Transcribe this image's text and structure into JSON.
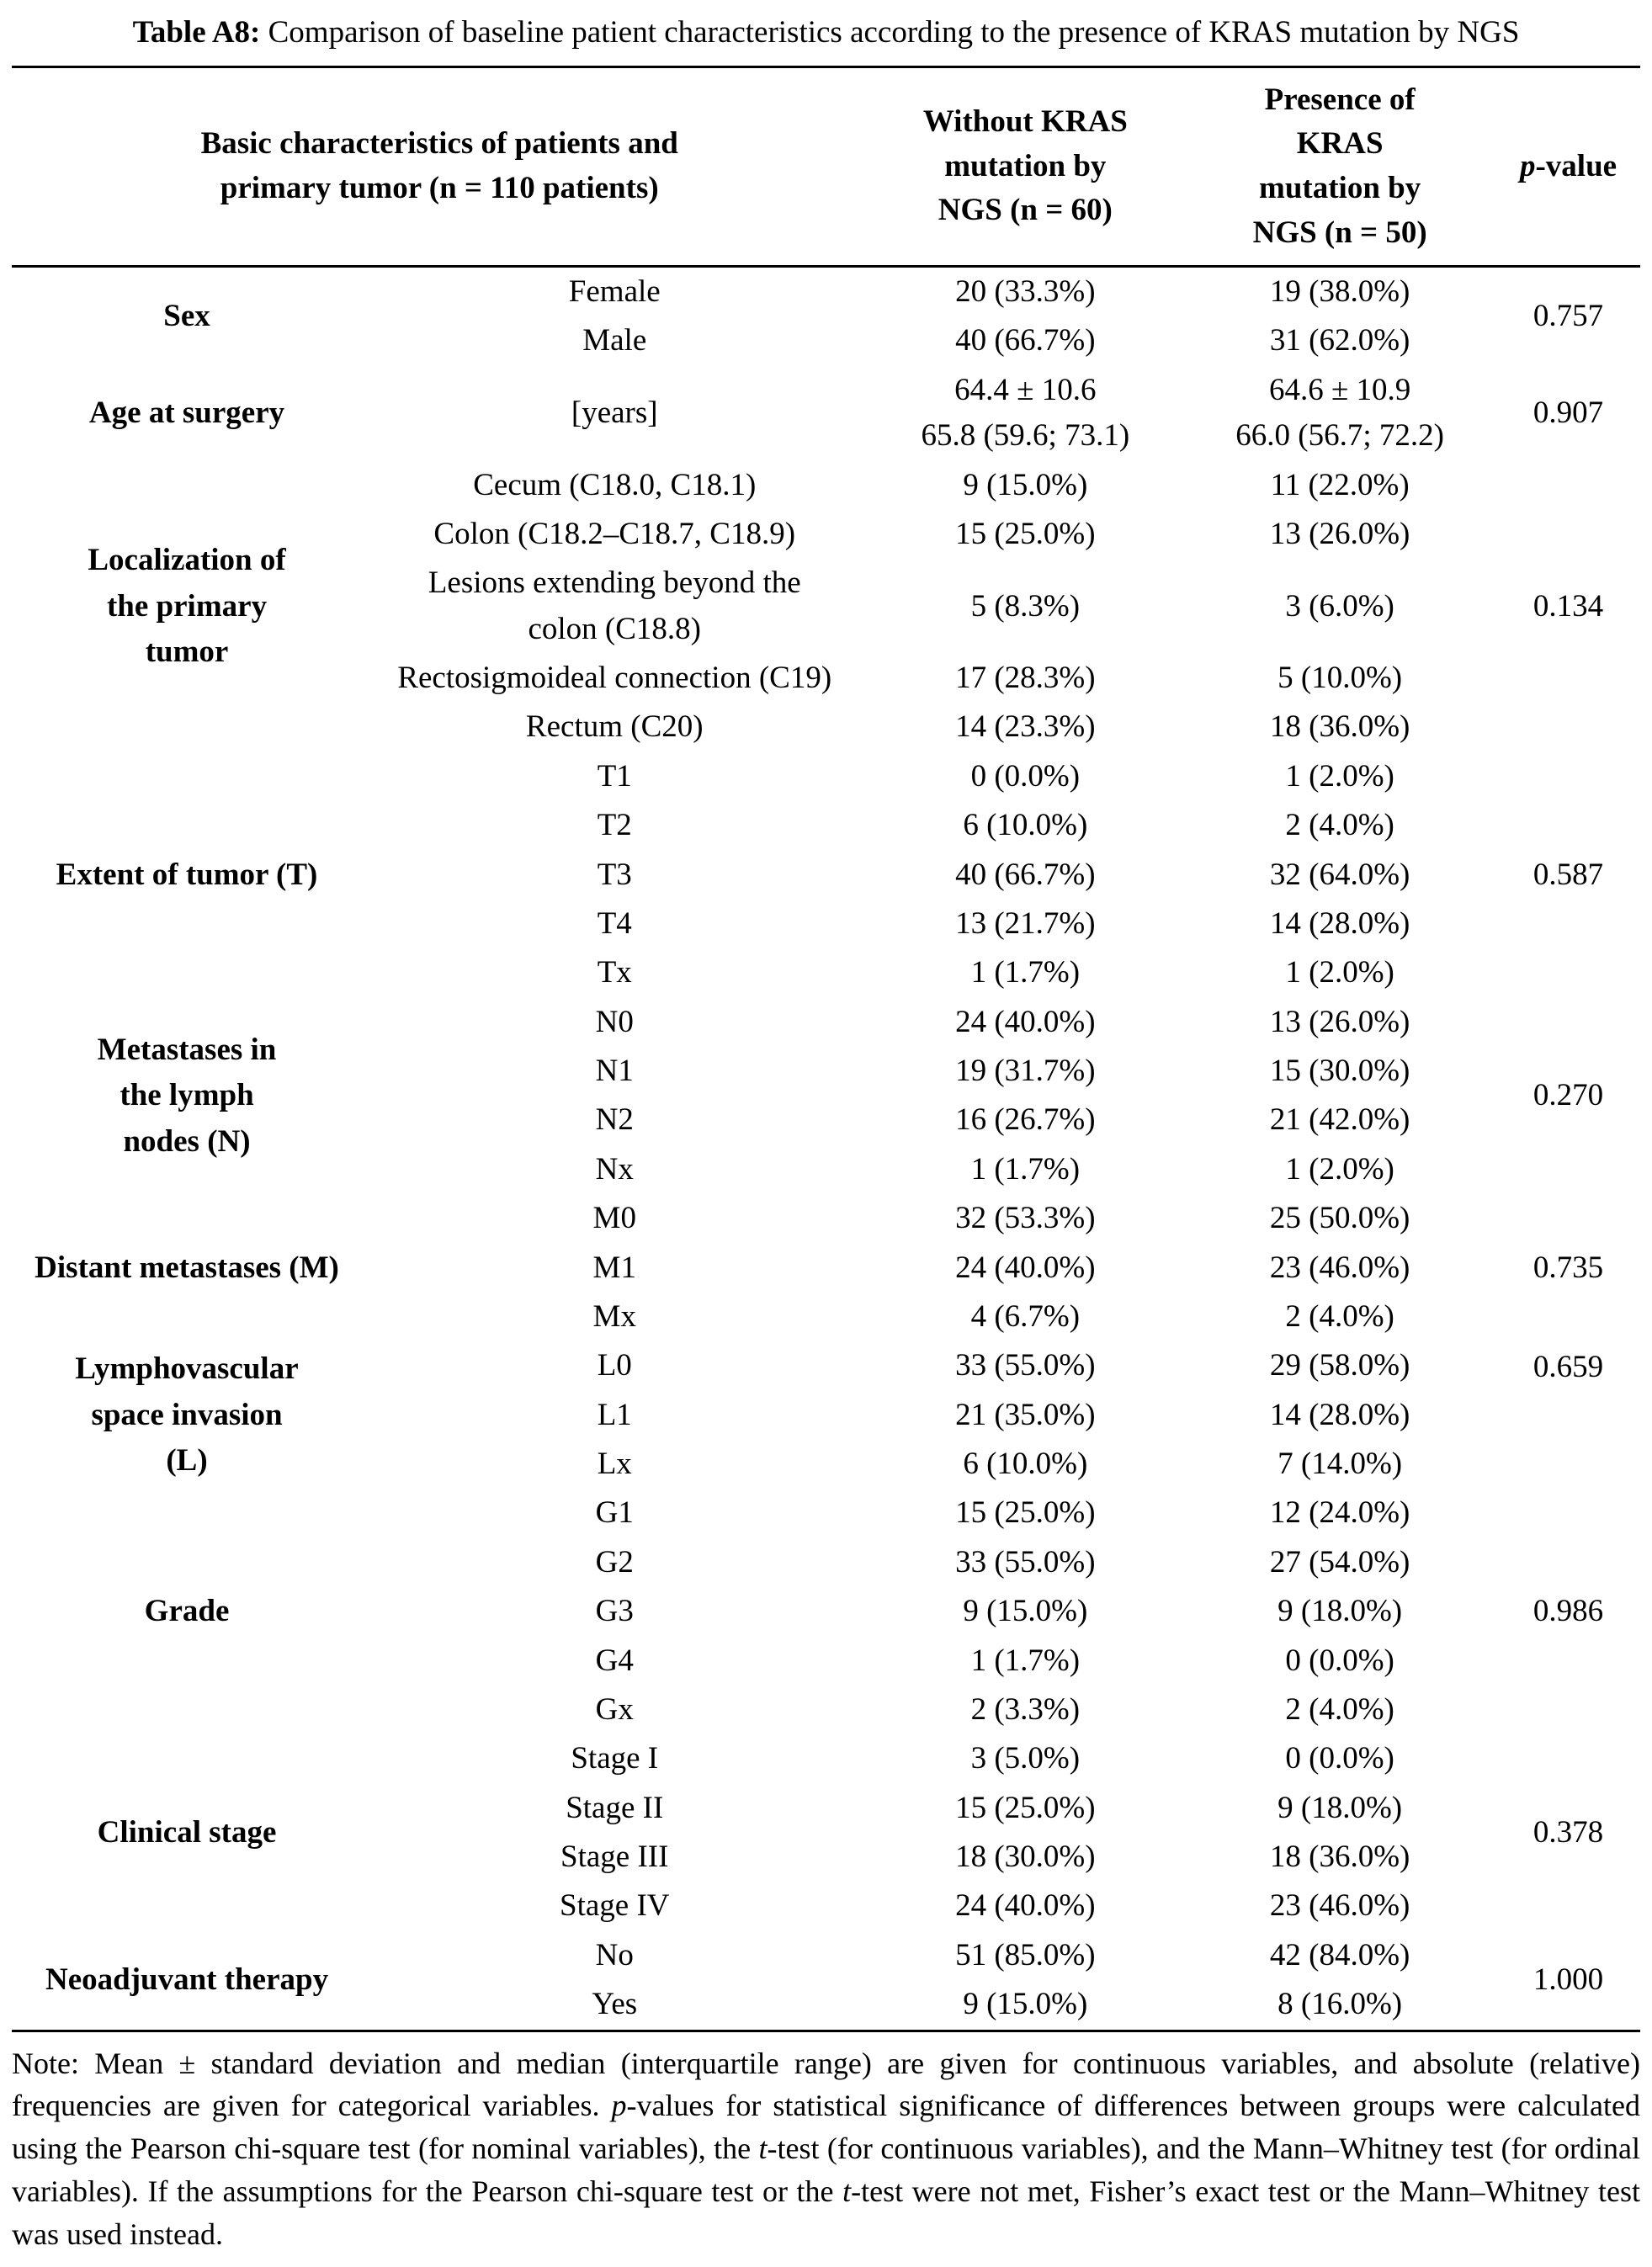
{
  "caption": {
    "segments": [
      {
        "text": "Table A8:",
        "bold": true
      },
      {
        "text": " Comparison of baseline patient characteristics according to the presence of KRAS mutation by NGS"
      }
    ]
  },
  "table": {
    "header": {
      "col1": "Basic characteristics of patients and\nprimary tumor (n = 110 patients)",
      "col2": "Without KRAS\nmutation by\nNGS (n = 60)",
      "col3": "Presence of\nKRAS\nmutation by\nNGS (n = 50)",
      "p_segments": [
        {
          "text": "p",
          "italic": true
        },
        {
          "text": "-value"
        }
      ]
    },
    "groups": [
      {
        "label": "Sex",
        "p": "0.757",
        "rows": [
          {
            "sub": "Female",
            "v1": "20 (33.3%)",
            "v2": "19 (38.0%)"
          },
          {
            "sub": "Male",
            "v1": "40 (66.7%)",
            "v2": "31 (62.0%)"
          }
        ]
      },
      {
        "label": "Age at surgery",
        "p": "0.907",
        "rows": [
          {
            "sub": "[years]",
            "v1": "64.4 ± 10.6\n65.8 (59.6; 73.1)",
            "v2": "64.6 ± 10.9\n66.0 (56.7; 72.2)"
          }
        ]
      },
      {
        "label": "Localization of\nthe primary\ntumor",
        "p": "0.134",
        "rows": [
          {
            "sub": "Cecum (C18.0, C18.1)",
            "v1": "9 (15.0%)",
            "v2": "11 (22.0%)"
          },
          {
            "sub": "Colon (C18.2–C18.7, C18.9)",
            "v1": "15 (25.0%)",
            "v2": "13 (26.0%)"
          },
          {
            "sub": "Lesions extending beyond the\ncolon (C18.8)",
            "v1": "5 (8.3%)",
            "v2": "3 (6.0%)"
          },
          {
            "sub": "Rectosigmoideal connection (C19)",
            "v1": "17 (28.3%)",
            "v2": "5 (10.0%)"
          },
          {
            "sub": "Rectum (C20)",
            "v1": "14 (23.3%)",
            "v2": "18 (36.0%)"
          }
        ]
      },
      {
        "label": "Extent of tumor (T)",
        "p": "0.587",
        "rows": [
          {
            "sub": "T1",
            "v1": "0 (0.0%)",
            "v2": "1 (2.0%)"
          },
          {
            "sub": "T2",
            "v1": "6 (10.0%)",
            "v2": "2 (4.0%)"
          },
          {
            "sub": "T3",
            "v1": "40 (66.7%)",
            "v2": "32 (64.0%)"
          },
          {
            "sub": "T4",
            "v1": "13 (21.7%)",
            "v2": "14 (28.0%)"
          },
          {
            "sub": "Tx",
            "v1": "1 (1.7%)",
            "v2": "1 (2.0%)"
          }
        ]
      },
      {
        "label": "Metastases in\nthe lymph\nnodes (N)",
        "p": "0.270",
        "rows": [
          {
            "sub": "N0",
            "v1": "24 (40.0%)",
            "v2": "13 (26.0%)"
          },
          {
            "sub": "N1",
            "v1": "19 (31.7%)",
            "v2": "15 (30.0%)"
          },
          {
            "sub": "N2",
            "v1": "16 (26.7%)",
            "v2": "21 (42.0%)"
          },
          {
            "sub": "Nx",
            "v1": "1 (1.7%)",
            "v2": "1 (2.0%)"
          }
        ]
      },
      {
        "label": "Distant metastases (M)",
        "p": "0.735",
        "rows": [
          {
            "sub": "M0",
            "v1": "32 (53.3%)",
            "v2": "25 (50.0%)"
          },
          {
            "sub": "M1",
            "v1": "24 (40.0%)",
            "v2": "23 (46.0%)"
          },
          {
            "sub": "Mx",
            "v1": "4 (6.7%)",
            "v2": "2 (4.0%)"
          }
        ]
      },
      {
        "label": "Lymphovascular\nspace invasion\n(L)",
        "p": "0.659",
        "p_align": "top",
        "rows": [
          {
            "sub": "L0",
            "v1": "33 (55.0%)",
            "v2": "29 (58.0%)"
          },
          {
            "sub": "L1",
            "v1": "21 (35.0%)",
            "v2": "14 (28.0%)"
          },
          {
            "sub": "Lx",
            "v1": "6 (10.0%)",
            "v2": "7 (14.0%)"
          }
        ]
      },
      {
        "label": "Grade",
        "p": "0.986",
        "rows": [
          {
            "sub": "G1",
            "v1": "15 (25.0%)",
            "v2": "12 (24.0%)"
          },
          {
            "sub": "G2",
            "v1": "33 (55.0%)",
            "v2": "27 (54.0%)"
          },
          {
            "sub": "G3",
            "v1": "9 (15.0%)",
            "v2": "9 (18.0%)"
          },
          {
            "sub": "G4",
            "v1": "1 (1.7%)",
            "v2": "0 (0.0%)"
          },
          {
            "sub": "Gx",
            "v1": "2 (3.3%)",
            "v2": "2 (4.0%)"
          }
        ]
      },
      {
        "label": "Clinical stage",
        "p": "0.378",
        "rows": [
          {
            "sub": "Stage I",
            "v1": "3 (5.0%)",
            "v2": "0 (0.0%)"
          },
          {
            "sub": "Stage II",
            "v1": "15 (25.0%)",
            "v2": "9 (18.0%)"
          },
          {
            "sub": "Stage III",
            "v1": "18 (30.0%)",
            "v2": "18 (36.0%)"
          },
          {
            "sub": "Stage IV",
            "v1": "24 (40.0%)",
            "v2": "23 (46.0%)"
          }
        ]
      },
      {
        "label": "Neoadjuvant therapy",
        "p": "1.000",
        "rows": [
          {
            "sub": "No",
            "v1": "51 (85.0%)",
            "v2": "42 (84.0%)"
          },
          {
            "sub": "Yes",
            "v1": "9 (15.0%)",
            "v2": "8 (16.0%)"
          }
        ]
      }
    ]
  },
  "note": {
    "segments": [
      {
        "text": "Note: Mean ± standard deviation and median (interquartile range) are given for continuous variables, and absolute (relative) frequencies are given for categorical variables. "
      },
      {
        "text": "p",
        "italic": true
      },
      {
        "text": "-values for statistical significance of differences between groups were calculated using the Pearson chi-square test (for nominal variables), the "
      },
      {
        "text": "t",
        "italic": true
      },
      {
        "text": "-test (for continuous variables), and the Mann–Whitney test (for ordinal variables). If the assumptions for the Pearson chi-square test or the "
      },
      {
        "text": "t",
        "italic": true
      },
      {
        "text": "-test were not met, Fisher’s exact test or the Mann–Whitney test was used instead."
      }
    ]
  }
}
